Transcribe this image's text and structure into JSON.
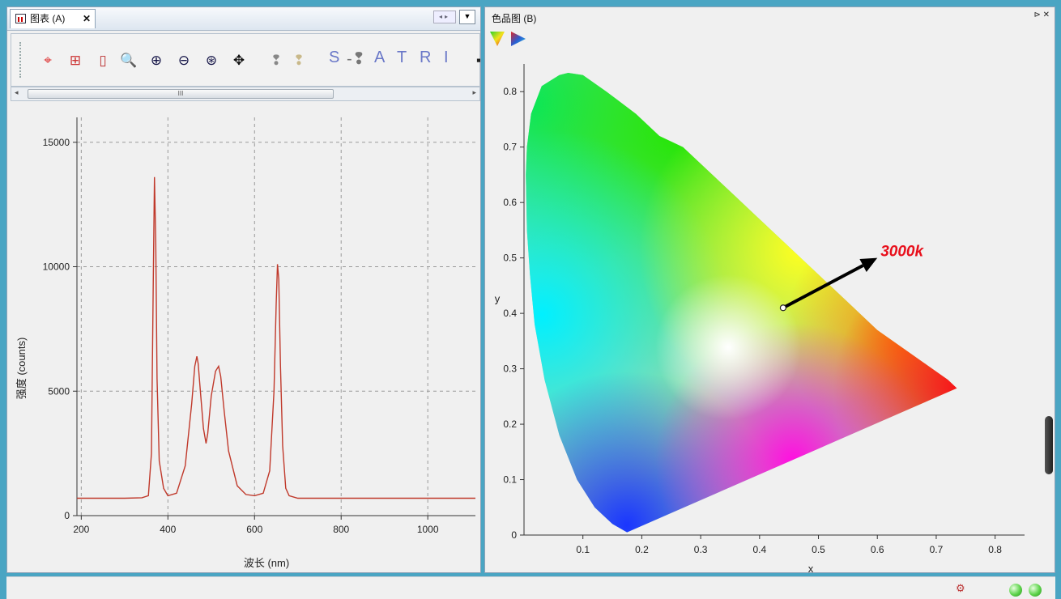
{
  "left_pane": {
    "tab_label": "图表 (A)",
    "tab_close": "✕",
    "nav_buttons": "◂▸",
    "dropdown": "▼",
    "toolbar_icons": [
      "crosshair-icon",
      "fit-all-icon",
      "fit-vertical-icon",
      "zoom-box-icon",
      "zoom-in-icon",
      "zoom-out-icon",
      "zoom-reset-icon",
      "pan-icon",
      "bulb-dark-icon",
      "bulb-light-icon",
      "save-icon"
    ],
    "toolbar_letters": [
      "S",
      "A",
      "T",
      "R",
      "I"
    ],
    "scroll_grip": "III"
  },
  "right_pane": {
    "title": "色品图 (B)",
    "controls": "⊳ ✕",
    "palette_icons": [
      "cie-1931-icon",
      "cie-1976-icon"
    ]
  },
  "chart_data": [
    {
      "type": "line",
      "title": "",
      "xlabel": "波长 (nm)",
      "ylabel": "强度 (counts)",
      "xlim": [
        190,
        1110
      ],
      "ylim": [
        0,
        16000
      ],
      "xticks": [
        200,
        400,
        600,
        800,
        1000
      ],
      "yticks": [
        0,
        5000,
        10000,
        15000
      ],
      "grid": "dashed",
      "line_color": "#c0392b",
      "series": [
        {
          "x": [
            190,
            300,
            340,
            355,
            362,
            366,
            369,
            372,
            375,
            380,
            390,
            400,
            420,
            440,
            455,
            462,
            467,
            470,
            475,
            482,
            488,
            492,
            500,
            510,
            517,
            522,
            530,
            540,
            560,
            580,
            600,
            620,
            635,
            645,
            650,
            653,
            656,
            660,
            665,
            672,
            680,
            700,
            720,
            800,
            900,
            1000,
            1110
          ],
          "values": [
            700,
            700,
            720,
            800,
            2500,
            9000,
            13600,
            11000,
            5500,
            2200,
            1100,
            800,
            900,
            2000,
            4500,
            6000,
            6400,
            6100,
            5000,
            3500,
            2900,
            3300,
            4800,
            5800,
            6000,
            5600,
            4200,
            2600,
            1200,
            850,
            800,
            900,
            1800,
            5000,
            8500,
            10100,
            9500,
            6000,
            2800,
            1100,
            800,
            700,
            700,
            700,
            700,
            700,
            700
          ]
        }
      ]
    },
    {
      "type": "scatter",
      "title": "",
      "xlabel": "x",
      "ylabel": "y",
      "xlim": [
        0,
        0.85
      ],
      "ylim": [
        0,
        0.85
      ],
      "xticks": [
        0.1,
        0.2,
        0.3,
        0.4,
        0.5,
        0.6,
        0.7,
        0.8
      ],
      "yticks": [
        0,
        0.1,
        0.2,
        0.3,
        0.4,
        0.5,
        0.6,
        0.7,
        0.8
      ],
      "grid": "off",
      "locus": {
        "x": [
          0.175,
          0.15,
          0.12,
          0.09,
          0.06,
          0.035,
          0.018,
          0.01,
          0.005,
          0.003,
          0.005,
          0.012,
          0.03,
          0.06,
          0.075,
          0.1,
          0.14,
          0.19,
          0.23,
          0.27,
          0.3,
          0.33,
          0.36,
          0.4,
          0.44,
          0.48,
          0.52,
          0.56,
          0.6,
          0.64,
          0.68,
          0.72,
          0.735
        ],
        "y": [
          0.005,
          0.02,
          0.05,
          0.1,
          0.18,
          0.28,
          0.38,
          0.47,
          0.55,
          0.65,
          0.7,
          0.76,
          0.81,
          0.83,
          0.834,
          0.83,
          0.8,
          0.76,
          0.72,
          0.7,
          0.67,
          0.64,
          0.61,
          0.57,
          0.53,
          0.49,
          0.45,
          0.41,
          0.37,
          0.34,
          0.31,
          0.28,
          0.265
        ]
      },
      "point": {
        "x": 0.44,
        "y": 0.41
      },
      "annotation": {
        "text": "3000k",
        "x": 0.6,
        "y": 0.5,
        "color": "#e8101c"
      }
    }
  ]
}
